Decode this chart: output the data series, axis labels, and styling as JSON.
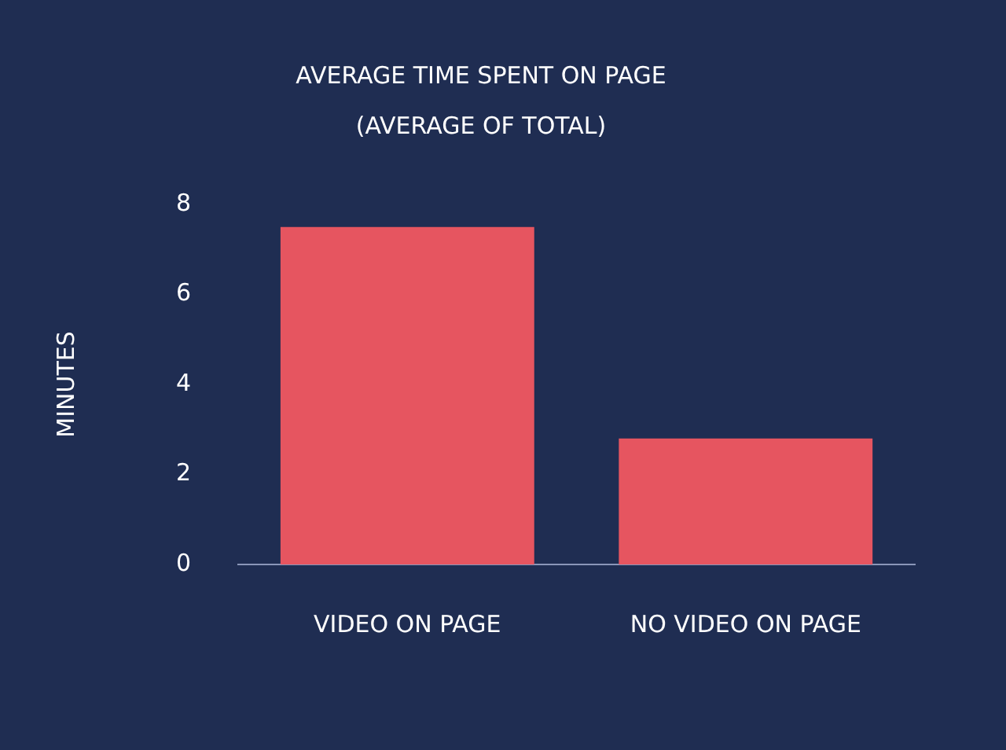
{
  "chart_data": {
    "type": "bar",
    "title": "AVERAGE TIME SPENT ON PAGE",
    "subtitle": "(AVERAGE OF TOTAL)",
    "ylabel": "MINUTES",
    "categories": [
      "VIDEO ON PAGE",
      "NO VIDEO ON PAGE"
    ],
    "values": [
      7.5,
      2.8
    ],
    "color": "#e65560",
    "ylim": [
      0,
      8
    ],
    "yticks": [
      0,
      2,
      4,
      6,
      8
    ],
    "grid": false,
    "legend": false
  }
}
